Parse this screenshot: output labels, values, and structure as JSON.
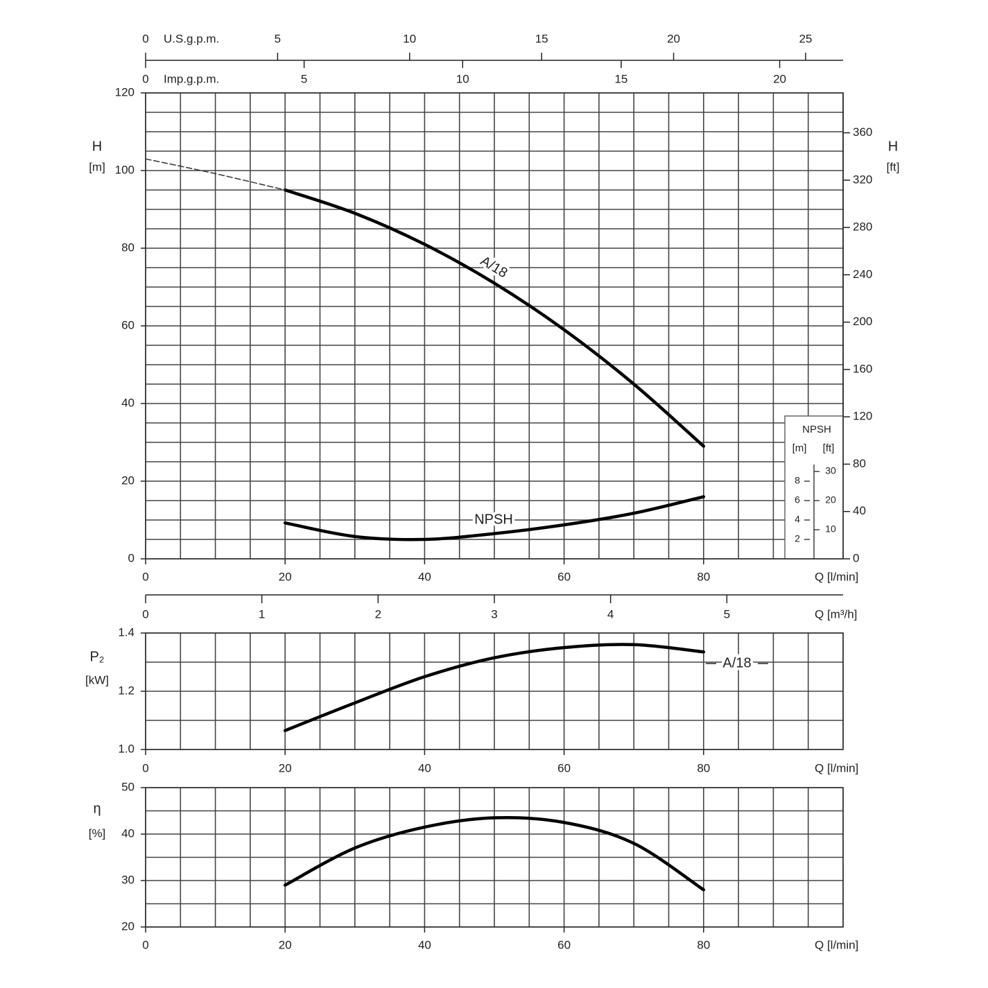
{
  "chart_data": [
    {
      "type": "line",
      "x_label": "Q [l/min]",
      "y_label": "H",
      "y_unit": "[m]",
      "y2_label": "H",
      "y2_unit": "[ft]",
      "xlim": [
        0,
        100
      ],
      "xticks": [
        0,
        20,
        40,
        60,
        80
      ],
      "ylim": [
        0,
        120
      ],
      "yticks": [
        0,
        20,
        40,
        60,
        80,
        100,
        120
      ],
      "y2lim": [
        0,
        393.7
      ],
      "y2ticks": [
        0,
        40,
        80,
        120,
        160,
        200,
        240,
        280,
        320,
        360
      ],
      "minor_grid": {
        "x": 5,
        "y": 5
      },
      "extra_x_axes": [
        {
          "label": "U.S.g.p.m.",
          "lim": [
            0,
            26.42
          ],
          "ticks": [
            0,
            5,
            10,
            15,
            20,
            25
          ]
        },
        {
          "label": "Imp.g.p.m.",
          "lim": [
            0,
            22
          ],
          "ticks": [
            0,
            5,
            10,
            15,
            20
          ]
        },
        {
          "label": "Q [m³/h]",
          "lim": [
            0,
            6
          ],
          "ticks": [
            0,
            1,
            2,
            3,
            4,
            5
          ]
        }
      ],
      "npsh_inset": {
        "title": "NPSH",
        "unit_m": "[m]",
        "unit_ft": "[ft]",
        "ylim_m": [
          0,
          48
        ],
        "ticks_m": [
          2,
          4,
          6,
          8
        ],
        "ylim_ft": [
          0,
          160
        ],
        "ticks_ft": [
          10,
          20,
          30
        ]
      },
      "series": [
        {
          "name": "A/18",
          "color": "#000000",
          "x": [
            20,
            30,
            40,
            50,
            60,
            70,
            80
          ],
          "values": [
            95,
            89,
            81,
            71,
            59,
            45,
            29
          ]
        },
        {
          "color": "#333333",
          "dashed": true,
          "x": [
            0,
            10,
            20
          ],
          "values": [
            103,
            99.2,
            95
          ]
        },
        {
          "name": "NPSH",
          "color": "#000000",
          "axis": "npsh_m",
          "x": [
            20,
            30,
            40,
            50,
            60,
            70,
            80
          ],
          "values": [
            3.7,
            2.3,
            2.0,
            2.6,
            3.5,
            4.7,
            6.4
          ]
        }
      ]
    },
    {
      "type": "line",
      "x_label": "Q [l/min]",
      "y_label": "P₂",
      "y_unit": "[kW]",
      "xlim": [
        0,
        100
      ],
      "xticks": [
        0,
        20,
        40,
        60,
        80
      ],
      "ylim": [
        1.0,
        1.4
      ],
      "yticks": [
        {
          "value": 1.0,
          "label": "1.0"
        },
        1.2,
        1.4
      ],
      "minor_grid": {
        "x": 5,
        "y": 0.1
      },
      "series": [
        {
          "name": "A/18",
          "color": "#000000",
          "x": [
            20,
            30,
            40,
            50,
            60,
            70,
            80
          ],
          "values": [
            1.065,
            1.16,
            1.25,
            1.315,
            1.35,
            1.36,
            1.335
          ]
        }
      ]
    },
    {
      "type": "line",
      "x_label": "Q [l/min]",
      "y_label": "η",
      "y_unit": "[%]",
      "xlim": [
        0,
        100
      ],
      "xticks": [
        0,
        20,
        40,
        60,
        80
      ],
      "ylim": [
        20,
        50
      ],
      "yticks": [
        20,
        30,
        40,
        50
      ],
      "minor_grid": {
        "x": 5,
        "y": 5
      },
      "series": [
        {
          "color": "#000000",
          "x": [
            20,
            30,
            40,
            50,
            60,
            70,
            80
          ],
          "values": [
            29,
            37,
            41.5,
            43.5,
            42.5,
            38,
            28
          ]
        }
      ]
    }
  ]
}
